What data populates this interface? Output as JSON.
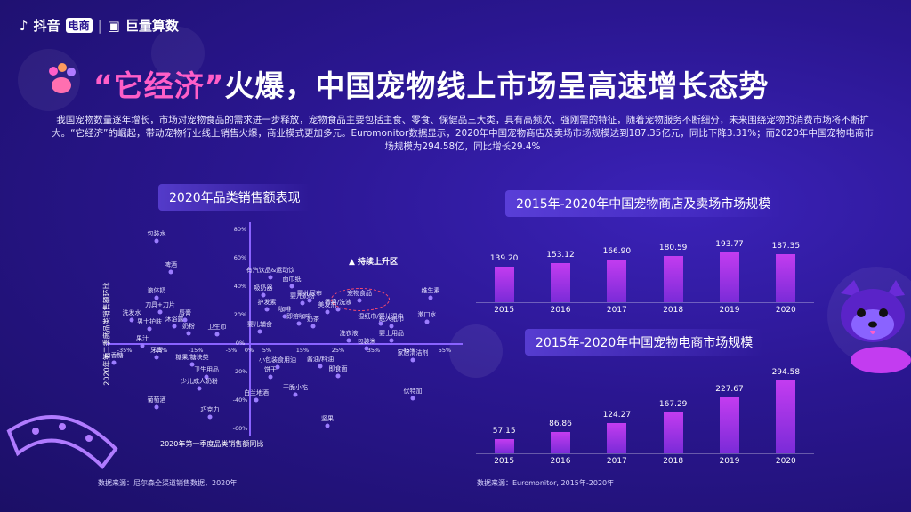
{
  "header": {
    "brand1": "抖音",
    "brand1_badge": "电商",
    "separator": "|",
    "brand2": "巨量算数"
  },
  "title": {
    "quote_part": "“它经济”",
    "rest": "火爆，中国宠物线上市场呈高速增长态势"
  },
  "description": "我国宠物数量逐年增长，市场对宠物食品的需求进一步释放，宠物食品主要包括主食、零食、保健品三大类，具有高频次、强刚需的特征，随着宠物服务不断细分，未来围绕宠物的消费市场将不断扩大。“它经济”的崛起，带动宠物行业线上销售火爆，商业模式更加多元。Euromonitor数据显示，2020年中国宠物商店及卖场市场规模达到187.35亿元，同比下降3.31%；而2020年中国宠物电商市场规模为294.58亿，同比增长29.4%",
  "colors": {
    "accent": "#ff5ec8",
    "bar": "#a033e6",
    "dot": "#9b7dff",
    "bg": "#2a1690"
  },
  "chart_data": [
    {
      "type": "scatter",
      "title": "2020年品类销售额表现",
      "xlabel": "2020年第一季度品类销售额同比",
      "ylabel": "2020年第二季度品类销售额环比",
      "xticks": [
        "-35%",
        "-25%",
        "-15%",
        "-5%",
        "0%",
        "5%",
        "15%",
        "25%",
        "35%",
        "45%",
        "55%"
      ],
      "yticks": [
        "80%",
        "60%",
        "40%",
        "20%",
        "0%",
        "-20%",
        "-40%",
        "-60%"
      ],
      "annotation": "持续上升区",
      "highlight": "宠物食品",
      "points": [
        {
          "label": "包装水",
          "x": -26,
          "y": 72
        },
        {
          "label": "啤酒",
          "x": -22,
          "y": 50
        },
        {
          "label": "液体奶",
          "x": -26,
          "y": 32
        },
        {
          "label": "刀具+刀片",
          "x": -25,
          "y": 22
        },
        {
          "label": "洗发水",
          "x": -33,
          "y": 16
        },
        {
          "label": "沐浴露",
          "x": -21,
          "y": 12
        },
        {
          "label": "男士护肤",
          "x": -28,
          "y": 10
        },
        {
          "label": "奶粉",
          "x": -17,
          "y": 7
        },
        {
          "label": "唇膏",
          "x": -18,
          "y": 16
        },
        {
          "label": "卫生巾",
          "x": -9,
          "y": 6
        },
        {
          "label": "牙膏",
          "x": -26,
          "y": -10
        },
        {
          "label": "果汁",
          "x": -30,
          "y": -2
        },
        {
          "label": "口香糖",
          "x": -38,
          "y": -14
        },
        {
          "label": "糖果/糖块类",
          "x": -16,
          "y": -15
        },
        {
          "label": "卫生用品",
          "x": -12,
          "y": -24
        },
        {
          "label": "少儿成人奶粉",
          "x": -14,
          "y": -32
        },
        {
          "label": "葡萄酒",
          "x": -26,
          "y": -45
        },
        {
          "label": "巧克力",
          "x": -11,
          "y": -52
        },
        {
          "label": "白兰地酒",
          "x": 2,
          "y": -40
        },
        {
          "label": "有汽饮品&运动饮",
          "x": 6,
          "y": 46
        },
        {
          "label": "吸奶器",
          "x": 4,
          "y": 34
        },
        {
          "label": "面巾纸",
          "x": 12,
          "y": 40
        },
        {
          "label": "婴儿尿布",
          "x": 17,
          "y": 30
        },
        {
          "label": "婴儿奶粉",
          "x": 15,
          "y": 28
        },
        {
          "label": "护发素",
          "x": 5,
          "y": 24
        },
        {
          "label": "咖啡",
          "x": 10,
          "y": 19
        },
        {
          "label": "即溶咖啡",
          "x": 14,
          "y": 14
        },
        {
          "label": "奶茶",
          "x": 18,
          "y": 12
        },
        {
          "label": "美发剂",
          "x": 22,
          "y": 22
        },
        {
          "label": "婴儿辅食",
          "x": 3,
          "y": 8
        },
        {
          "label": "饼干",
          "x": 6,
          "y": -24
        },
        {
          "label": "小包装食用油",
          "x": 8,
          "y": -17
        },
        {
          "label": "干脆小吃",
          "x": 13,
          "y": -36
        },
        {
          "label": "酱油/料油",
          "x": 20,
          "y": -16
        },
        {
          "label": "即食面",
          "x": 25,
          "y": -23
        },
        {
          "label": "坚果",
          "x": 22,
          "y": -58
        },
        {
          "label": "香皂/洗液",
          "x": 25,
          "y": 24
        },
        {
          "label": "宠物食品",
          "x": 31,
          "y": 30
        },
        {
          "label": "洗衣液",
          "x": 28,
          "y": 2
        },
        {
          "label": "包装米",
          "x": 33,
          "y": -4
        },
        {
          "label": "湿纸巾/婴儿湿巾",
          "x": 37,
          "y": 14
        },
        {
          "label": "成人纸巾",
          "x": 40,
          "y": 12
        },
        {
          "label": "婴士用品",
          "x": 40,
          "y": 2
        },
        {
          "label": "维生素",
          "x": 51,
          "y": 32
        },
        {
          "label": "漱口水",
          "x": 50,
          "y": 15
        },
        {
          "label": "家居清洁剂",
          "x": 46,
          "y": -12
        },
        {
          "label": "伏特加",
          "x": 46,
          "y": -39
        }
      ]
    },
    {
      "type": "bar",
      "title": "2015年-2020年中国宠物商店及卖场市场规模",
      "categories": [
        "2015",
        "2016",
        "2017",
        "2018",
        "2019",
        "2020"
      ],
      "values": [
        139.2,
        153.12,
        166.9,
        180.59,
        193.77,
        187.35
      ],
      "value_labels": [
        "139.20",
        "153.12",
        "166.90",
        "180.59",
        "193.77",
        "187.35"
      ]
    },
    {
      "type": "bar",
      "title": "2015年-2020年中国宠物电商市场规模",
      "categories": [
        "2015",
        "2016",
        "2017",
        "2018",
        "2019",
        "2020"
      ],
      "values": [
        57.15,
        86.86,
        124.27,
        167.29,
        227.67,
        294.58
      ],
      "value_labels": [
        "57.15",
        "86.86",
        "124.27",
        "167.29",
        "227.67",
        "294.58"
      ]
    }
  ],
  "sources": {
    "left": "数据来源：尼尔森全渠道销售数据，2020年",
    "right": "数据来源：Euromonitor, 2015年-2020年"
  }
}
